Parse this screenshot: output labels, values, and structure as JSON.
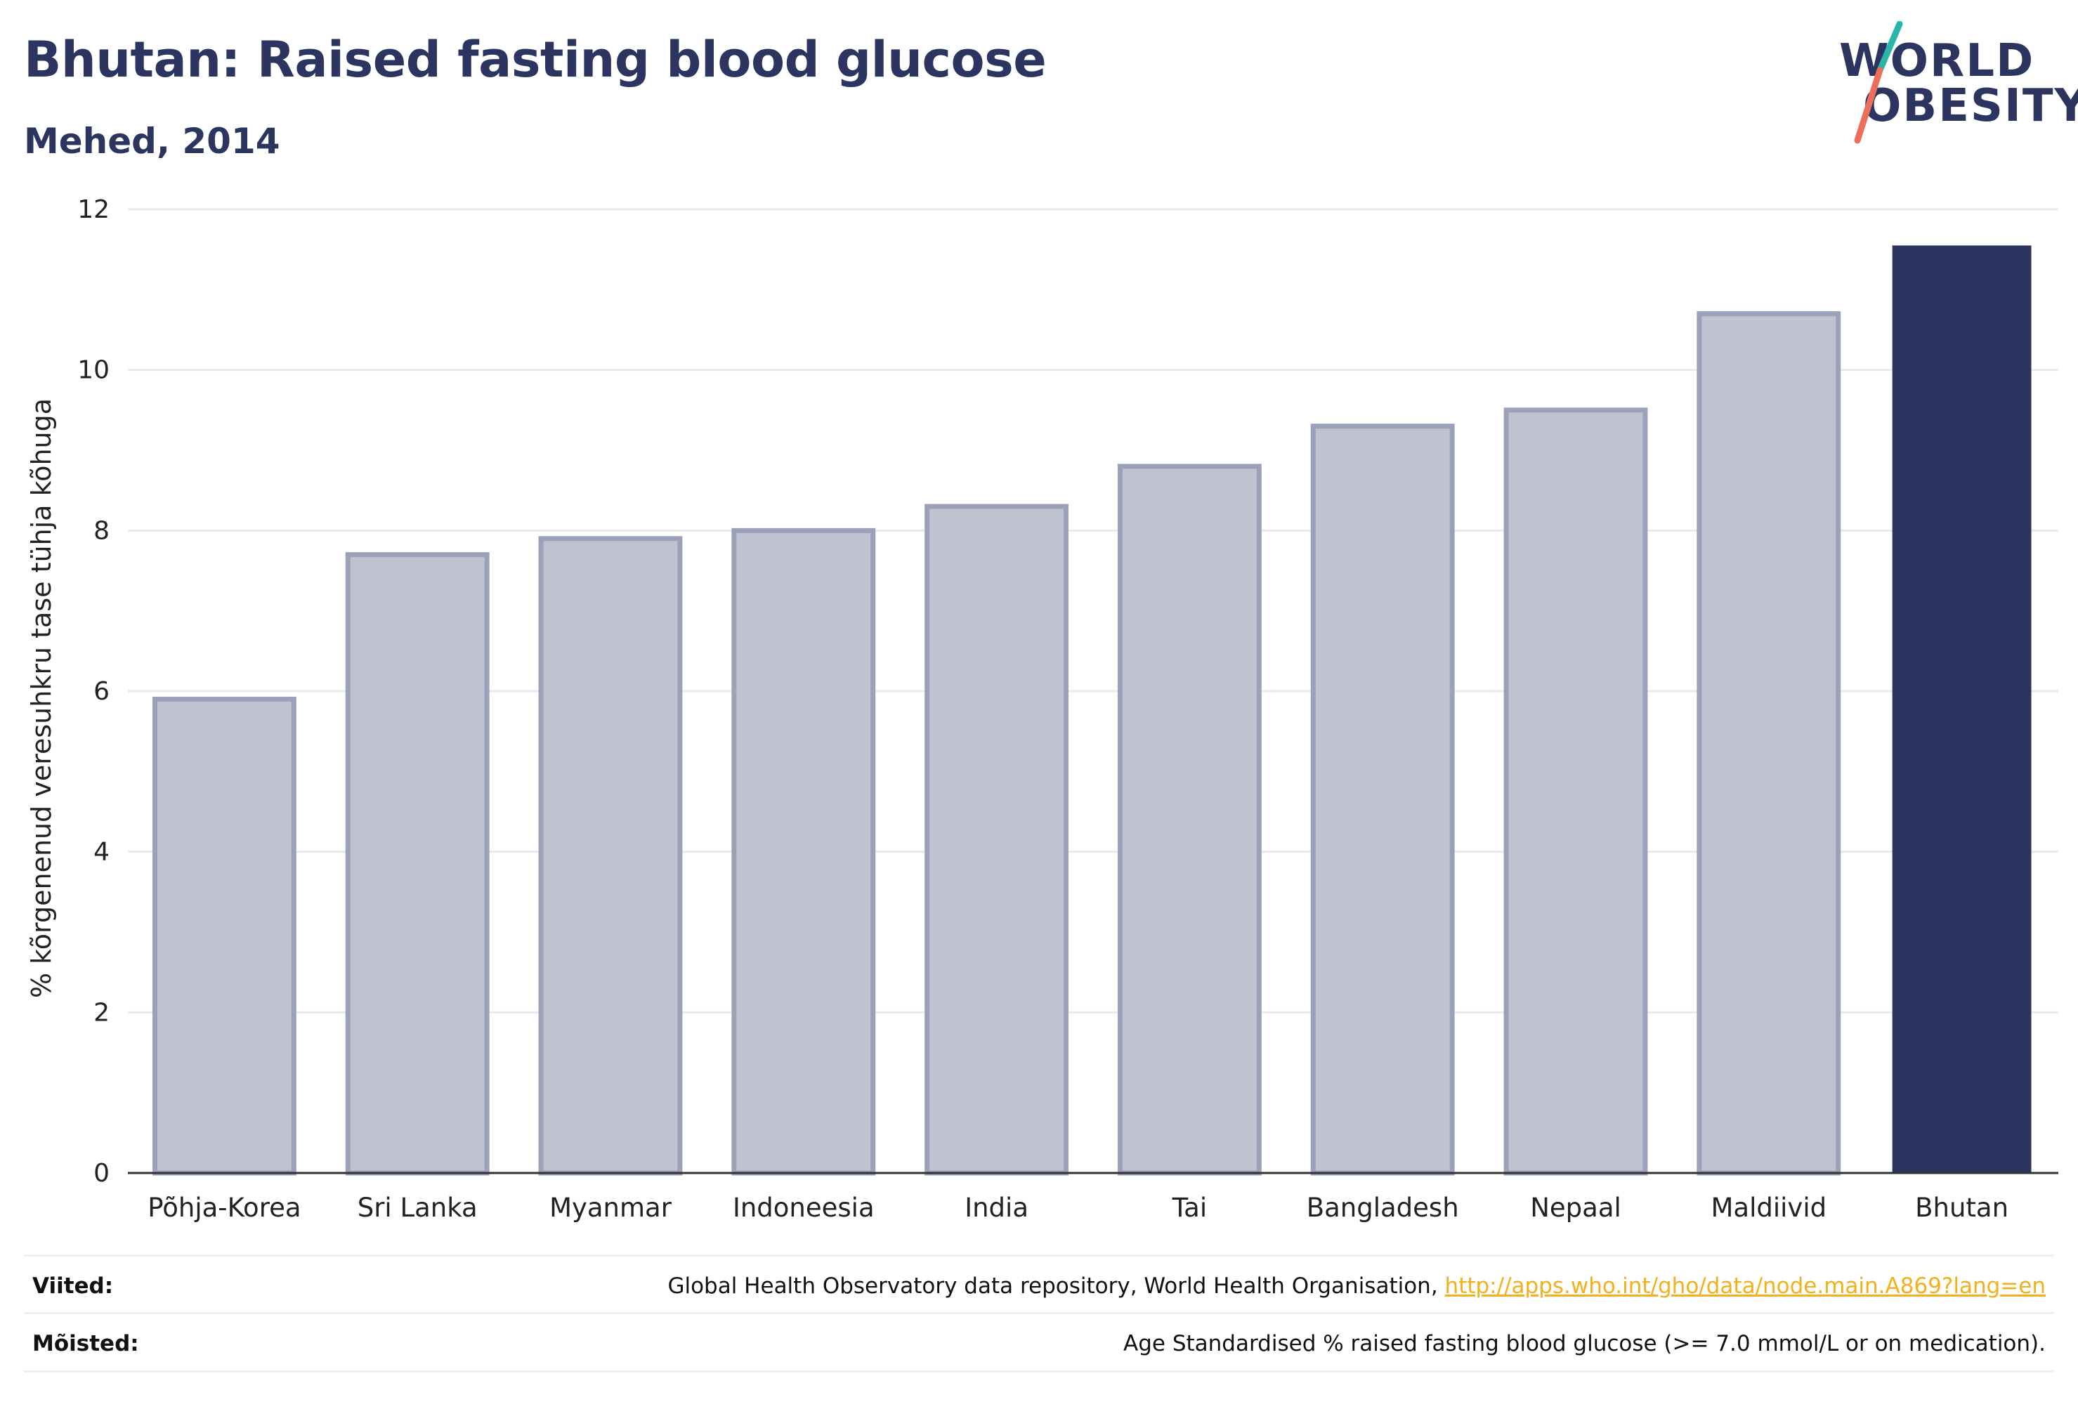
{
  "header": {
    "title": "Bhutan: Raised fasting blood glucose",
    "subtitle": "Mehed, 2014"
  },
  "logo": {
    "line1": "WORLD",
    "line2": "OBESITY",
    "slash_color_top": "#2bb5a8",
    "slash_color_bottom": "#ec6e5b"
  },
  "colors": {
    "highlight": "#2b3560",
    "muted_fill": "#bfc2cf",
    "muted_stroke": "#9ba1b8",
    "grid": "#e9eaee",
    "axis": "#333333"
  },
  "chart_data": {
    "type": "bar",
    "title": "Bhutan: Raised fasting blood glucose",
    "subtitle": "Mehed, 2014",
    "xlabel": "",
    "ylabel": "% kõrgenenud veresuhkru tase tühja kõhuga",
    "ylim": [
      0,
      12
    ],
    "yticks": [
      0,
      2,
      4,
      6,
      8,
      10,
      12
    ],
    "grid": true,
    "categories": [
      "Põhja-Korea",
      "Sri Lanka",
      "Myanmar",
      "Indoneesia",
      "India",
      "Tai",
      "Bangladesh",
      "Nepaal",
      "Maldiivid",
      "Bhutan"
    ],
    "values": [
      5.9,
      7.7,
      7.9,
      8.0,
      8.3,
      8.8,
      9.3,
      9.5,
      10.7,
      11.55
    ],
    "highlight": "Bhutan"
  },
  "footer": {
    "sources_label": "Viited:",
    "sources_text": "Global Health Observatory data repository, World Health Organisation, ",
    "sources_link": "http://apps.who.int/gho/data/node.main.A869?lang=en",
    "definitions_label": "Mõisted:",
    "definitions_text": "Age Standardised % raised fasting blood glucose (>= 7.0 mmol/L or on medication)."
  }
}
